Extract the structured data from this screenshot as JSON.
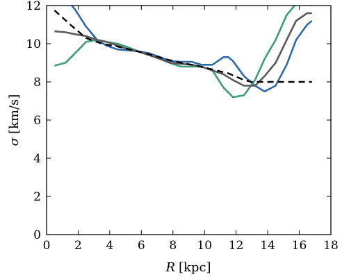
{
  "chart_data": {
    "type": "line",
    "xlabel_var": "R",
    "xlabel_unit": "[kpc]",
    "ylabel_var": "σ",
    "ylabel_unit": "[km/s]",
    "xlim": [
      0,
      18
    ],
    "ylim": [
      0,
      12
    ],
    "xticks": [
      0,
      2,
      4,
      6,
      8,
      10,
      12,
      14,
      16,
      18
    ],
    "yticks": [
      0,
      2,
      4,
      6,
      8,
      10,
      12
    ],
    "grid": false,
    "series": [
      {
        "color": "#2e6aa6",
        "style": "solid",
        "x": [
          0.5,
          1.2,
          1.8,
          2.5,
          3.2,
          3.8,
          4.5,
          5.2,
          5.8,
          6.5,
          7.2,
          7.8,
          8.5,
          9.2,
          9.8,
          10.5,
          11.2,
          11.5,
          11.8,
          12.5,
          13.2,
          13.8,
          14.5,
          15.2,
          15.8,
          16.5,
          16.8
        ],
        "y": [
          12.6,
          12.4,
          11.8,
          10.9,
          10.2,
          9.9,
          9.7,
          9.65,
          9.6,
          9.5,
          9.3,
          9.1,
          9.05,
          9.05,
          8.9,
          8.9,
          9.3,
          9.3,
          9.1,
          8.3,
          7.8,
          7.5,
          7.8,
          8.9,
          10.2,
          11.0,
          11.2
        ]
      },
      {
        "color": "#3f9c78",
        "style": "solid",
        "x": [
          0.5,
          1.2,
          1.8,
          2.5,
          3.2,
          3.8,
          4.5,
          5.2,
          5.8,
          6.5,
          7.2,
          7.8,
          8.5,
          9.2,
          9.8,
          10.5,
          11.2,
          11.8,
          12.5,
          13.2,
          13.8,
          14.5,
          15.2,
          15.8,
          16.5,
          16.8
        ],
        "y": [
          8.85,
          9.0,
          9.5,
          10.1,
          10.2,
          10.1,
          10.0,
          9.8,
          9.6,
          9.4,
          9.2,
          9.0,
          8.8,
          8.8,
          8.8,
          8.6,
          7.7,
          7.2,
          7.3,
          8.1,
          9.2,
          10.2,
          11.5,
          12.1,
          12.1,
          12.0
        ]
      },
      {
        "color": "#5a5a5a",
        "style": "solid",
        "x": [
          0.5,
          1.2,
          1.8,
          2.5,
          3.2,
          3.8,
          4.5,
          5.2,
          5.8,
          6.5,
          7.2,
          7.8,
          8.5,
          9.2,
          9.8,
          10.5,
          11.2,
          11.8,
          12.5,
          13.2,
          13.8,
          14.5,
          15.2,
          15.8,
          16.5,
          16.8
        ],
        "y": [
          10.65,
          10.6,
          10.5,
          10.4,
          10.2,
          10.1,
          9.9,
          9.7,
          9.6,
          9.4,
          9.2,
          9.0,
          8.95,
          8.9,
          8.8,
          8.6,
          8.4,
          8.1,
          7.8,
          7.8,
          8.3,
          9.0,
          10.2,
          11.2,
          11.6,
          11.6
        ]
      },
      {
        "color": "#000000",
        "style": "dashed",
        "x": [
          0.5,
          1.5,
          2.5,
          3.5,
          4.5,
          5.5,
          6.5,
          7.5,
          8.5,
          9.5,
          10.5,
          11.5,
          12.5,
          13.0,
          14.0,
          15.0,
          16.0,
          16.8
        ],
        "y": [
          11.75,
          11.0,
          10.3,
          10.0,
          9.85,
          9.65,
          9.45,
          9.2,
          9.0,
          8.85,
          8.65,
          8.45,
          8.1,
          8.0,
          8.0,
          8.0,
          8.0,
          8.0
        ]
      }
    ]
  }
}
